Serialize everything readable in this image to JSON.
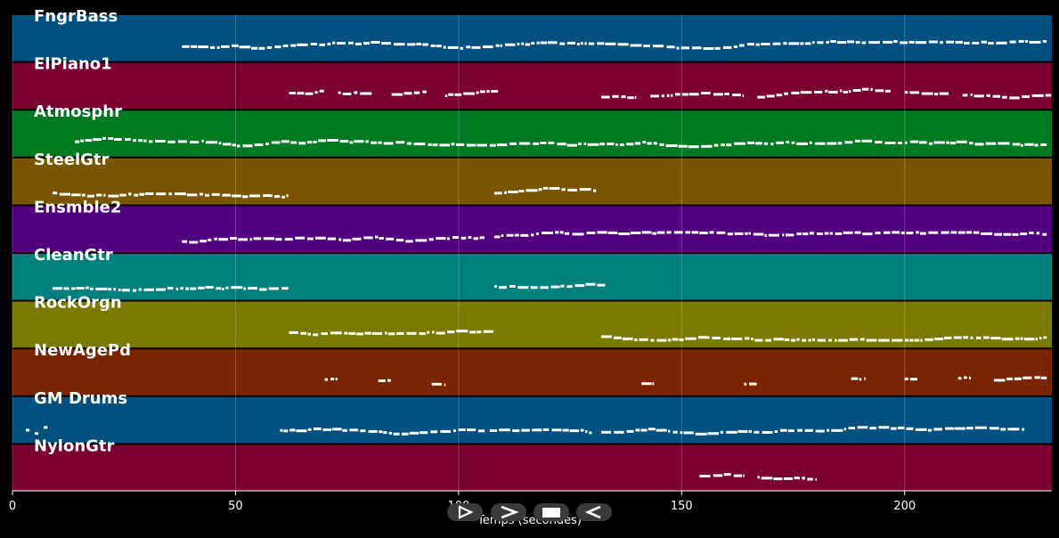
{
  "roll": {
    "axis_title": "Temps (secondes)",
    "x_range": [
      0,
      233
    ],
    "ticks": [
      {
        "value": 0,
        "label": "0"
      },
      {
        "value": 50,
        "label": "50"
      },
      {
        "value": 100,
        "label": "100"
      },
      {
        "value": 150,
        "label": "150"
      },
      {
        "value": 200,
        "label": "200"
      }
    ],
    "tracks": [
      {
        "name": "FngrBass",
        "color": "#005080",
        "segments": [
          [
            38,
            232
          ]
        ]
      },
      {
        "name": "ElPiano1",
        "color": "#7a0030",
        "segments": [
          [
            62,
            70
          ],
          [
            73,
            81
          ],
          [
            85,
            93
          ],
          [
            97,
            109
          ],
          [
            132,
            140
          ],
          [
            143,
            164
          ],
          [
            167,
            197
          ],
          [
            200,
            210
          ],
          [
            213,
            233
          ]
        ]
      },
      {
        "name": "Atmosphr",
        "color": "#007a20",
        "segments": [
          [
            14,
            232
          ]
        ]
      },
      {
        "name": "SteelGtr",
        "color": "#7a5500",
        "segments": [
          [
            9,
            62
          ],
          [
            108,
            131
          ]
        ]
      },
      {
        "name": "Ensmble2",
        "color": "#520080",
        "segments": [
          [
            38,
            106
          ],
          [
            108,
            232
          ]
        ]
      },
      {
        "name": "CleanGtr",
        "color": "#00807c",
        "segments": [
          [
            9,
            62
          ],
          [
            108,
            133
          ]
        ]
      },
      {
        "name": "RockOrgn",
        "color": "#7a7a00",
        "segments": [
          [
            62,
            108
          ],
          [
            132,
            232
          ]
        ]
      },
      {
        "name": "NewAgePd",
        "color": "#7a2500",
        "segments": [
          [
            70,
            73
          ],
          [
            82,
            85
          ],
          [
            94,
            97
          ],
          [
            141,
            144
          ],
          [
            164,
            167
          ],
          [
            188,
            191
          ],
          [
            200,
            203
          ],
          [
            212,
            215
          ],
          [
            220,
            232
          ]
        ]
      },
      {
        "name": "GM Drums",
        "color": "#005080",
        "segments": [
          [
            3,
            4
          ],
          [
            5,
            6
          ],
          [
            7,
            8
          ],
          [
            60,
            106
          ],
          [
            107,
            130
          ],
          [
            132,
            227
          ]
        ]
      },
      {
        "name": "NylonGtr",
        "color": "#7a0030",
        "segments": [
          [
            154,
            164
          ],
          [
            167,
            180
          ]
        ]
      }
    ]
  },
  "controls": [
    {
      "name": "play-button",
      "icon": "play-icon"
    },
    {
      "name": "forward-button",
      "icon": "chevron-right-icon"
    },
    {
      "name": "stop-button",
      "icon": "stop-icon"
    },
    {
      "name": "rewind-button",
      "icon": "rewind-icon"
    }
  ]
}
